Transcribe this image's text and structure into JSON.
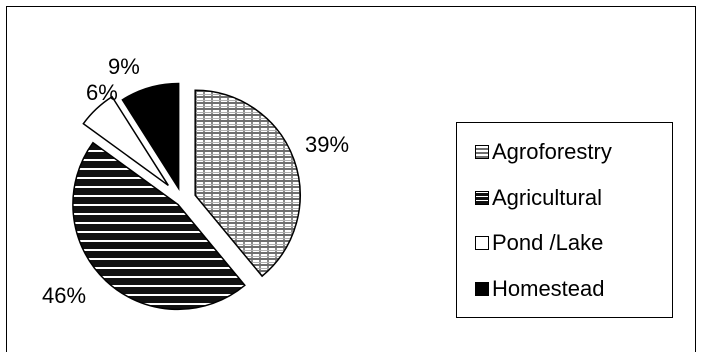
{
  "chart_data": {
    "type": "pie",
    "title": "",
    "categories": [
      "Agroforestry",
      "Agricultural",
      "Pond /Lake",
      "Homestead"
    ],
    "values": [
      39,
      46,
      6,
      9
    ],
    "labels": [
      "39%",
      "46%",
      "6%",
      "9%"
    ],
    "exploded": true,
    "legend_position": "right",
    "colors": {
      "agroforestry": "#9a9a9a",
      "agricultural": "#111111",
      "pond_lake": "#ffffff",
      "homestead": "#000000"
    }
  },
  "legend": {
    "items": [
      {
        "label": "Agroforestry",
        "swatch": "gray-brick-pattern"
      },
      {
        "label": "Agricultural",
        "swatch": "black-stripe-pattern"
      },
      {
        "label": "Pond /Lake",
        "swatch": "white"
      },
      {
        "label": "Homestead",
        "swatch": "solid-black"
      }
    ]
  }
}
